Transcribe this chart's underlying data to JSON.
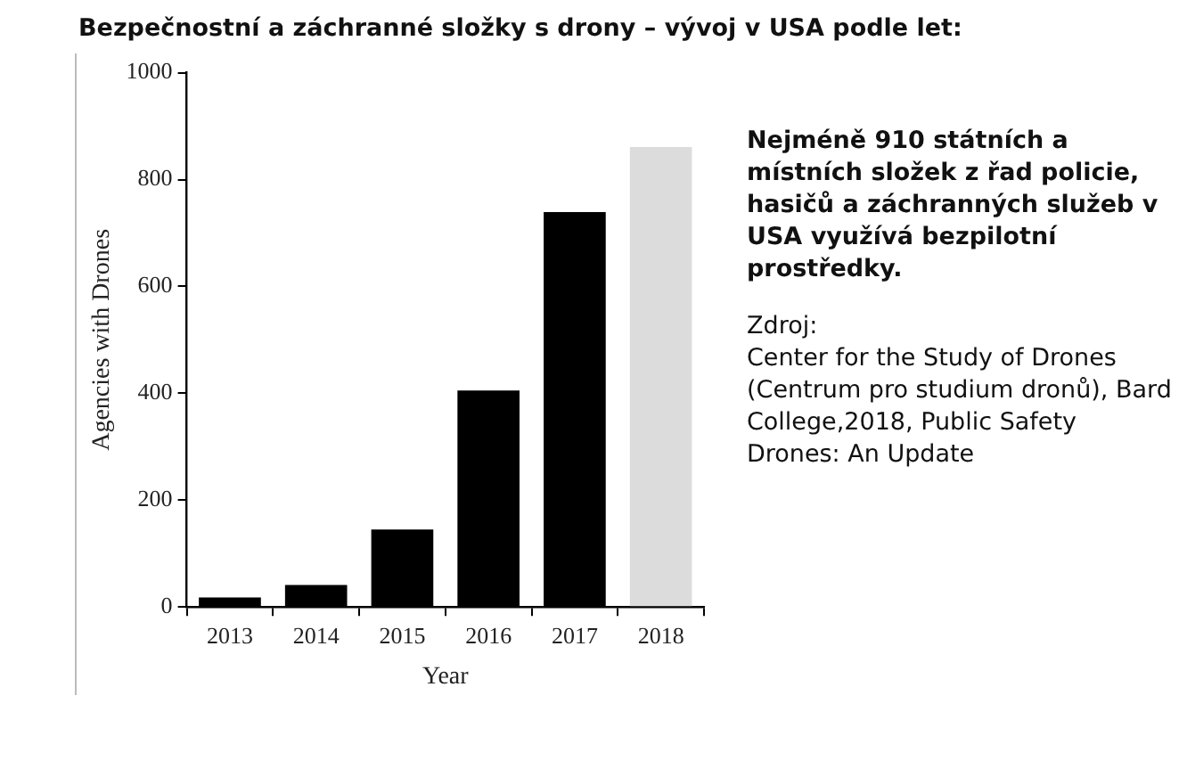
{
  "chart_data": {
    "type": "bar",
    "title": "Bezpečnostní a záchranné složky s drony – vývoj v USA podle let:",
    "xlabel": "Year",
    "ylabel": "Agencies with Drones",
    "categories": [
      "2013",
      "2014",
      "2015",
      "2016",
      "2017",
      "2018"
    ],
    "values": [
      18,
      41,
      145,
      405,
      739,
      861
    ],
    "colors": [
      "#000000",
      "#000000",
      "#000000",
      "#000000",
      "#000000",
      "#dcdcdc"
    ],
    "ylim": [
      0,
      1000
    ],
    "yticks": [
      0,
      200,
      400,
      600,
      800,
      1000
    ],
    "annotations": [
      "Nejméně 910 státních a místních složek z řad policie, hasičů a záchranných služeb v USA využívá bezpilotní prostředky.",
      "Zdroj:",
      "Center for the Study of Drones (Centrum pro studium dronů), Bard College,2018, Public Safety Drones:  An Update"
    ]
  }
}
